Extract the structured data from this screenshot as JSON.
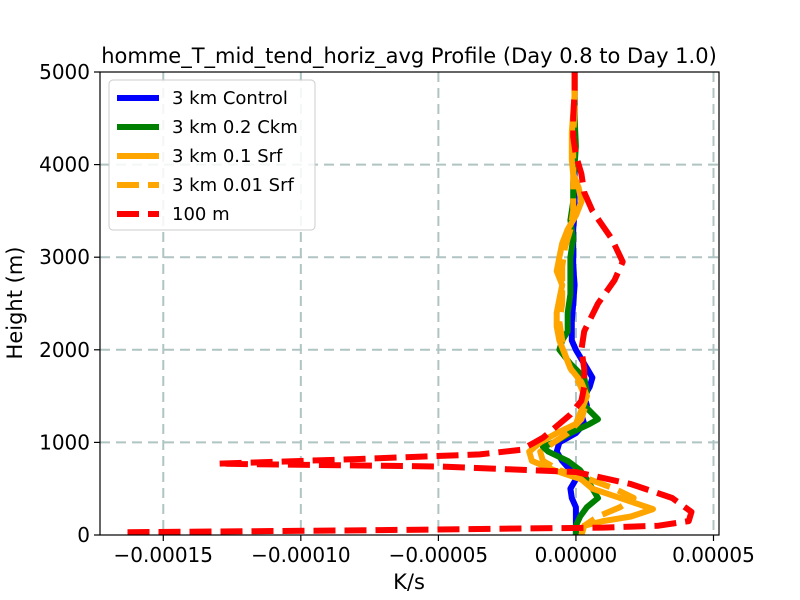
{
  "chart_data": {
    "type": "line",
    "title": "homme_T_mid_tend_horiz_avg Profile (Day 0.8 to Day 1.0)",
    "xlabel": "K/s",
    "ylabel": "Height (m)",
    "xlim": [
      -0.000173,
      5.2e-05
    ],
    "ylim": [
      0,
      5000
    ],
    "xticks": [
      -0.00015,
      -0.0001,
      -5e-05,
      0.0,
      5e-05
    ],
    "xtick_labels": [
      "−0.00015",
      "−0.00010",
      "−0.00005",
      "0.00000",
      "0.00005"
    ],
    "yticks": [
      0,
      1000,
      2000,
      3000,
      4000,
      5000
    ],
    "ytick_labels": [
      "0",
      "1000",
      "2000",
      "3000",
      "4000",
      "5000"
    ],
    "grid": true,
    "legend_position": "top-left",
    "series": [
      {
        "name": "3 km Control",
        "color": "#0000ff",
        "style": "solid",
        "points": [
          [
            0.0,
            0
          ],
          [
            0.0,
            100
          ],
          [
            0.0,
            200
          ],
          [
            0.0,
            300
          ],
          [
            -1.5e-06,
            400
          ],
          [
            -2e-06,
            500
          ],
          [
            0.0,
            600
          ],
          [
            -2e-06,
            700
          ],
          [
            -5e-06,
            800
          ],
          [
            -7e-06,
            900
          ],
          [
            -6e-06,
            1000
          ],
          [
            0.0,
            1100
          ],
          [
            3e-06,
            1200
          ],
          [
            2e-06,
            1300
          ],
          [
            4e-06,
            1400
          ],
          [
            3e-06,
            1500
          ],
          [
            5e-06,
            1600
          ],
          [
            6e-06,
            1700
          ],
          [
            4e-06,
            1800
          ],
          [
            2e-06,
            1900
          ],
          [
            0.0,
            2000
          ],
          [
            -1.5e-06,
            2100
          ],
          [
            -1.5e-06,
            2200
          ],
          [
            -1.5e-06,
            2300
          ],
          [
            -1e-06,
            2500
          ],
          [
            -5e-07,
            2700
          ],
          [
            -1e-06,
            2900
          ],
          [
            -1e-06,
            3100
          ],
          [
            -1e-06,
            3300
          ],
          [
            -5e-07,
            3500
          ],
          [
            -5e-07,
            3700
          ],
          [
            -5e-07,
            4000
          ],
          [
            -5e-07,
            4300
          ],
          [
            -5e-07,
            4600
          ],
          [
            -5e-07,
            5000
          ]
        ]
      },
      {
        "name": "3 km 0.2 Ckm",
        "color": "#008000",
        "style": "solid",
        "points": [
          [
            0.0,
            0
          ],
          [
            0.0,
            100
          ],
          [
            1.5e-06,
            200
          ],
          [
            4e-06,
            300
          ],
          [
            8e-06,
            400
          ],
          [
            6e-06,
            500
          ],
          [
            4e-06,
            600
          ],
          [
            1.5e-06,
            700
          ],
          [
            -3e-06,
            800
          ],
          [
            -1e-05,
            900
          ],
          [
            -1.2e-05,
            950
          ],
          [
            -8e-06,
            1000
          ],
          [
            -2e-06,
            1100
          ],
          [
            5e-06,
            1200
          ],
          [
            8e-06,
            1250
          ],
          [
            3e-06,
            1400
          ],
          [
            4e-06,
            1550
          ],
          [
            3e-06,
            1700
          ],
          [
            -2e-06,
            1850
          ],
          [
            -6e-06,
            2000
          ],
          [
            -5e-06,
            2100
          ],
          [
            -3e-06,
            2200
          ],
          [
            -3e-06,
            2400
          ],
          [
            -2e-06,
            2600
          ],
          [
            -2e-06,
            2800
          ],
          [
            -2e-06,
            3000
          ],
          [
            -1e-06,
            3200
          ],
          [
            -2e-06,
            3400
          ],
          [
            -1e-06,
            3600
          ],
          [
            -1e-06,
            3800
          ],
          [
            -5e-07,
            4000
          ],
          [
            0.0,
            4200
          ],
          [
            -5e-07,
            4500
          ],
          [
            -5e-07,
            4800
          ],
          [
            -5e-07,
            5000
          ]
        ]
      },
      {
        "name": "3 km 0.1 Srf",
        "color": "#ffa500",
        "style": "solid",
        "points": [
          [
            2e-06,
            0
          ],
          [
            3e-06,
            100
          ],
          [
            1e-05,
            150
          ],
          [
            2e-05,
            200
          ],
          [
            2.8e-05,
            280
          ],
          [
            1.8e-05,
            380
          ],
          [
            6e-06,
            500
          ],
          [
            2e-06,
            600
          ],
          [
            -8e-06,
            700
          ],
          [
            -1.6e-05,
            800
          ],
          [
            -1.7e-05,
            900
          ],
          [
            -1.3e-05,
            1000
          ],
          [
            -7e-06,
            1100
          ],
          [
            0.0,
            1200
          ],
          [
            2e-06,
            1350
          ],
          [
            4e-06,
            1500
          ],
          [
            2e-06,
            1650
          ],
          [
            -2e-06,
            1800
          ],
          [
            -4e-06,
            1950
          ],
          [
            -6e-06,
            2100
          ],
          [
            -7e-06,
            2250
          ],
          [
            -7e-06,
            2400
          ],
          [
            -6e-06,
            2550
          ],
          [
            -5e-06,
            2700
          ],
          [
            -7e-06,
            2850
          ],
          [
            -6e-06,
            3000
          ],
          [
            -5e-06,
            3150
          ],
          [
            -3e-06,
            3300
          ],
          [
            0.0,
            3450
          ],
          [
            2e-06,
            3600
          ],
          [
            1e-06,
            3750
          ],
          [
            -1e-06,
            3900
          ],
          [
            -1.5e-06,
            4050
          ],
          [
            -1.5e-06,
            4200
          ],
          [
            -1.5e-06,
            4350
          ],
          [
            -1e-06,
            4550
          ],
          [
            -5e-07,
            4750
          ],
          [
            -5e-07,
            5000
          ]
        ]
      },
      {
        "name": "3 km 0.01 Srf",
        "color": "#ffa500",
        "style": "dashed",
        "points": [
          [
            2e-06,
            0
          ],
          [
            3e-06,
            100
          ],
          [
            8e-06,
            200
          ],
          [
            1.6e-05,
            300
          ],
          [
            2.1e-05,
            400
          ],
          [
            1.4e-05,
            500
          ],
          [
            5e-06,
            600
          ],
          [
            -6e-06,
            700
          ],
          [
            -1.2e-05,
            800
          ],
          [
            -1.3e-05,
            900
          ],
          [
            -8e-06,
            1000
          ],
          [
            -3e-06,
            1100
          ],
          [
            2e-06,
            1250
          ],
          [
            4e-06,
            1450
          ],
          [
            1e-06,
            1650
          ],
          [
            -2e-06,
            1800
          ],
          [
            -4e-06,
            1950
          ],
          [
            -5e-06,
            2100
          ],
          [
            -6e-06,
            2300
          ],
          [
            -5e-06,
            2500
          ],
          [
            -5e-06,
            2700
          ],
          [
            -5e-06,
            2900
          ],
          [
            -4e-06,
            3100
          ],
          [
            -2e-06,
            3300
          ],
          [
            -1e-06,
            3500
          ],
          [
            -1e-06,
            3700
          ],
          [
            -1e-06,
            3900
          ],
          [
            -1e-06,
            4100
          ],
          [
            -1e-06,
            4300
          ],
          [
            -5e-07,
            4600
          ],
          [
            -5e-07,
            5000
          ]
        ]
      },
      {
        "name": "100 m",
        "color": "#ff0000",
        "style": "dashed",
        "points": [
          [
            -0.000163,
            30
          ],
          [
            -8e-05,
            50
          ],
          [
            1e-05,
            80
          ],
          [
            3e-05,
            100
          ],
          [
            4.1e-05,
            150
          ],
          [
            4.2e-05,
            250
          ],
          [
            3.5e-05,
            400
          ],
          [
            2e-05,
            550
          ],
          [
            0.0,
            680
          ],
          [
            -5e-05,
            740
          ],
          [
            -0.00013,
            770
          ],
          [
            -8e-05,
            820
          ],
          [
            -3.5e-05,
            870
          ],
          [
            -2e-05,
            920
          ],
          [
            -1.5e-05,
            1000
          ],
          [
            -1.2e-05,
            1050
          ],
          [
            -8e-06,
            1150
          ],
          [
            -2e-06,
            1300
          ],
          [
            2e-06,
            1450
          ],
          [
            3e-06,
            1600
          ],
          [
            3e-06,
            1800
          ],
          [
            2e-06,
            2000
          ],
          [
            3e-06,
            2200
          ],
          [
            8e-06,
            2500
          ],
          [
            1.4e-05,
            2750
          ],
          [
            1.7e-05,
            2950
          ],
          [
            1.3e-05,
            3200
          ],
          [
            6e-06,
            3500
          ],
          [
            3e-06,
            3700
          ],
          [
            2e-06,
            3900
          ],
          [
            0.0,
            4100
          ],
          [
            -1e-06,
            4300
          ],
          [
            -1e-06,
            4500
          ],
          [
            -5e-07,
            4800
          ],
          [
            -5e-07,
            5000
          ]
        ]
      }
    ]
  }
}
